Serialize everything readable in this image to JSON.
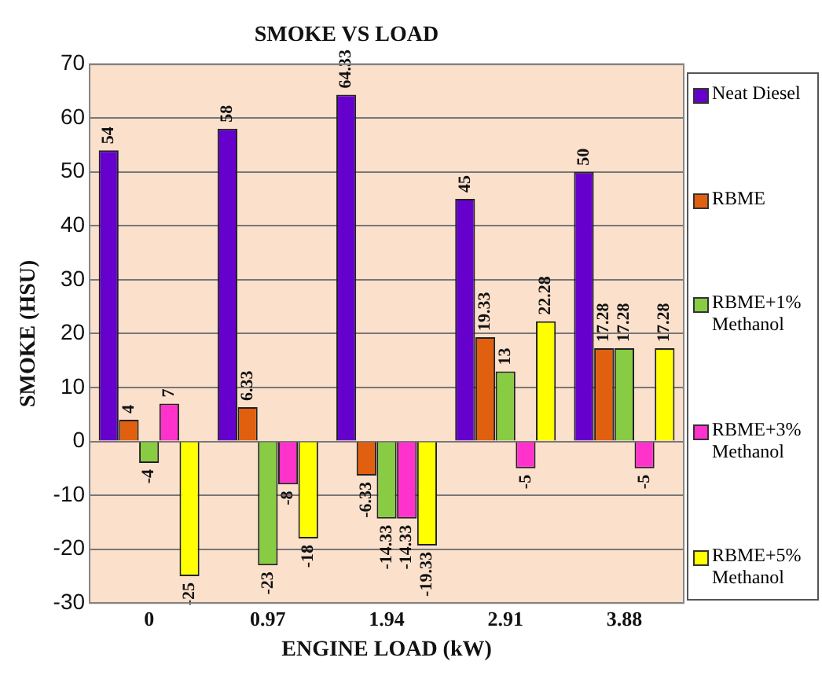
{
  "chart_data": {
    "type": "bar",
    "title": "SMOKE VS LOAD",
    "xlabel": "ENGINE LOAD (kW)",
    "ylabel": "SMOKE (HSU)",
    "categories": [
      "0",
      "0.97",
      "1.94",
      "2.91",
      "3.88"
    ],
    "series": [
      {
        "name": "Neat Diesel",
        "color": "#6600cc",
        "values": [
          54,
          58,
          64.33,
          45,
          50
        ]
      },
      {
        "name": "RBME",
        "color": "#e06010",
        "values": [
          4,
          6.33,
          -6.33,
          19.33,
          17.28
        ]
      },
      {
        "name": "RBME+1% Methanol",
        "color": "#88cc44",
        "values": [
          -4,
          -23,
          -14.33,
          13,
          17.28
        ]
      },
      {
        "name": "RBME+3% Methanol",
        "color": "#ff33cc",
        "values": [
          7,
          -8,
          -14.33,
          -5,
          -5
        ]
      },
      {
        "name": "RBME+5% Methanol",
        "color": "#ffff00",
        "values": [
          -25,
          -18,
          -19.33,
          22.28,
          17.28
        ]
      }
    ],
    "ylim": [
      -30,
      70
    ],
    "yticks": [
      -30,
      -20,
      -10,
      0,
      10,
      20,
      30,
      40,
      50,
      60,
      70
    ],
    "grid": "y",
    "legend": "right",
    "data_labels": true
  }
}
